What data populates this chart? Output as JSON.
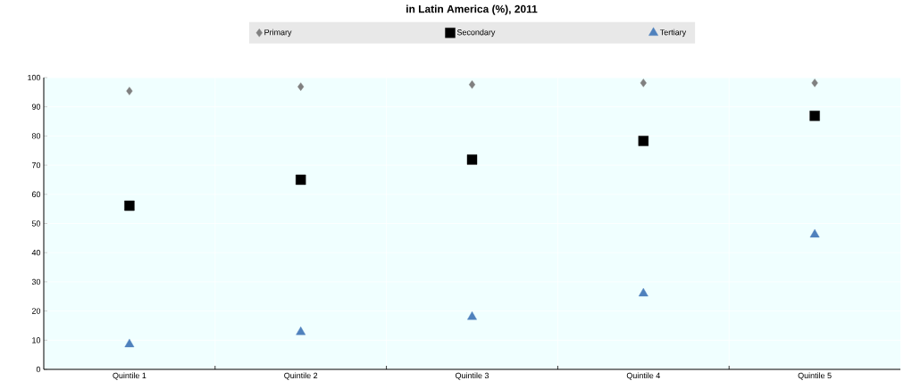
{
  "chart_data": {
    "type": "scatter",
    "title": "in Latin America (%), 2011",
    "categories": [
      "Quintile 1",
      "Quintile 2",
      "Quintile 3",
      "Quintile 4",
      "Quintile 5"
    ],
    "series": [
      {
        "name": "Primary",
        "color": "#808080",
        "marker": "diamond",
        "values": [
          95.4,
          96.9,
          97.6,
          98.2,
          98.2
        ]
      },
      {
        "name": "Secondary",
        "color": "#000000",
        "marker": "square",
        "values": [
          56.1,
          65.0,
          71.9,
          78.3,
          86.9
        ]
      },
      {
        "name": "Tertiary",
        "color": "#4f81bd",
        "marker": "triangle",
        "values": [
          8.6,
          12.8,
          18.0,
          26.0,
          46.2
        ]
      }
    ],
    "ylim": [
      0,
      100
    ],
    "yticks": [
      0,
      10,
      20,
      30,
      40,
      50,
      60,
      70,
      80,
      90,
      100
    ],
    "grid": true,
    "legend": "top"
  }
}
